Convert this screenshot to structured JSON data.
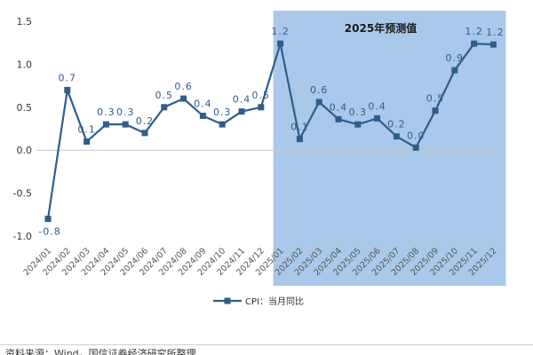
{
  "chart_data": {
    "type": "line",
    "title": "",
    "xlabel": "",
    "ylabel": "",
    "ylim": [
      -1.0,
      1.5
    ],
    "yticks": [
      "-1.0",
      "-0.5",
      "0.0",
      "0.5",
      "1.0",
      "1.5"
    ],
    "ytick_values": [
      -1.0,
      -0.5,
      0.0,
      0.5,
      1.0,
      1.5
    ],
    "grid": false,
    "legend_position": "bottom-center",
    "categories": [
      "2024/01",
      "2024/02",
      "2024/03",
      "2024/04",
      "2024/05",
      "2024/06",
      "2024/07",
      "2024/08",
      "2024/09",
      "2024/10",
      "2024/11",
      "2024/12",
      "2025/01",
      "2025/02",
      "2025/03",
      "2025/04",
      "2025/05",
      "2025/06",
      "2025/07",
      "2025/08",
      "2025/09",
      "2025/10",
      "2025/11",
      "2025/12"
    ],
    "series": [
      {
        "name": "CPI：当月同比",
        "values": [
          -0.8,
          0.7,
          0.1,
          0.3,
          0.3,
          0.2,
          0.5,
          0.6,
          0.4,
          0.3,
          0.45,
          0.5,
          1.24,
          0.13,
          0.56,
          0.36,
          0.3,
          0.37,
          0.16,
          0.03,
          0.46,
          0.93,
          1.24,
          1.23
        ],
        "labels": [
          "-0.8",
          "0.7",
          "0.1",
          "0.3",
          "0.3",
          "0.2",
          "0.5",
          "0.6",
          "0.4",
          "0.3",
          "0.4",
          "0.5",
          "1.2",
          "0.1",
          "0.6",
          "0.4",
          "0.3",
          "0.4",
          "0.2",
          "0.0",
          "0.5",
          "0.9",
          "1.2",
          "1.2"
        ],
        "color": "#2f5d8a"
      }
    ],
    "forecast_region": {
      "label": "2025年预测值",
      "start": "2025/01",
      "end": "2025/12",
      "color": "#a9c8ea"
    }
  },
  "footnote": "资料来源：Wind，国信证券经济研究所整理"
}
